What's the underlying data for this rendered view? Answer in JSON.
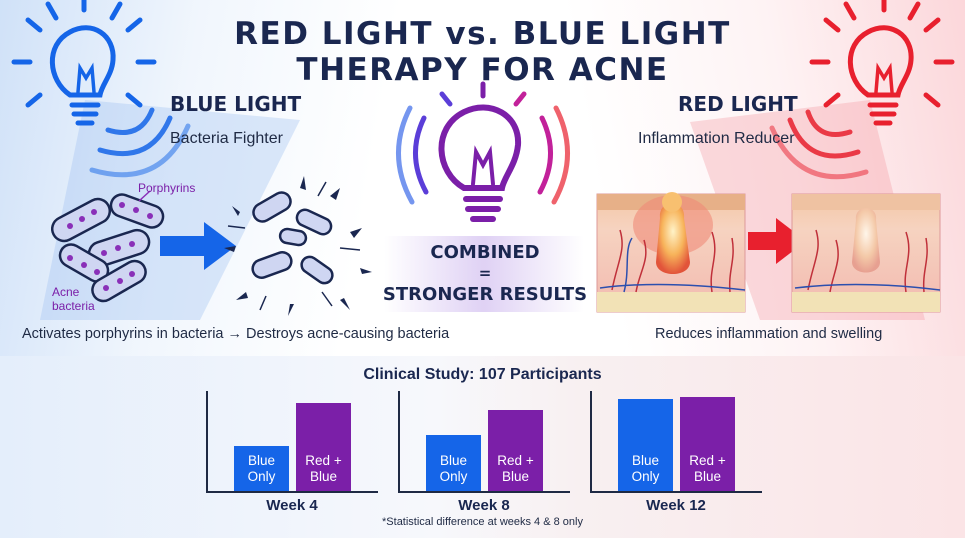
{
  "title": {
    "line1": "RED LIGHT vs. BLUE LIGHT",
    "line2": "THERAPY FOR ACNE"
  },
  "blue_section": {
    "heading": "BLUE LIGHT",
    "subheading": "Bacteria Fighter",
    "label_porphyrins": "Porphyrins",
    "label_acne_bacteria": "Acne\nbacteria",
    "caption": "Activates porphyrins in bacteria → Destroys acne-causing bacteria",
    "color": "#1565e8"
  },
  "red_section": {
    "heading": "RED LIGHT",
    "subheading": "Inflammation Reducer",
    "caption": "Reduces inflammation and swelling",
    "color": "#e8202e"
  },
  "combined": {
    "line1": "COMBINED",
    "line2": "=",
    "line3": "STRONGER RESULTS",
    "color": "#7b1fa8"
  },
  "chart_data": {
    "type": "bar",
    "title": "Clinical Study: 107 Participants",
    "categories": [
      "Week 4",
      "Week 8",
      "Week 12"
    ],
    "series": [
      {
        "name": "Blue\nOnly",
        "color": "#1565e8",
        "values": [
          45,
          56,
          92
        ]
      },
      {
        "name": "Red +\nBlue",
        "color": "#7b1fa8",
        "values": [
          88,
          81,
          94
        ]
      }
    ],
    "ylim": [
      0,
      100
    ],
    "footnote": "*Statistical difference at weeks 4 & 8 only"
  }
}
